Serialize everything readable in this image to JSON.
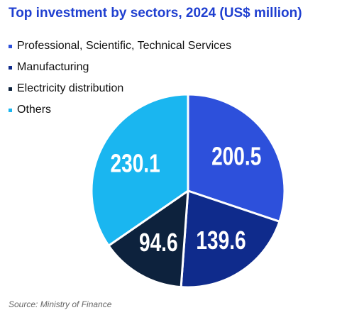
{
  "chart_data": {
    "type": "pie",
    "title": "Top investment by sectors, 2024 (US$ million)",
    "categories": [
      "Professional, Scientific, Technical Services",
      "Manufacturing",
      "Electricity distribution",
      "Others"
    ],
    "values": [
      200.5,
      139.6,
      94.6,
      230.1
    ],
    "value_labels": [
      "200.5",
      "139.6",
      "94.6",
      "230.1"
    ],
    "colors": [
      "#2d50db",
      "#0f2b8c",
      "#0d223d",
      "#1ab6f0"
    ],
    "legend_position": "top-left",
    "start_angle_deg": 0,
    "direction": "clockwise"
  },
  "source": "Source: Ministry of Finance"
}
